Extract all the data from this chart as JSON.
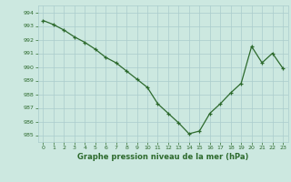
{
  "x": [
    0,
    1,
    2,
    3,
    4,
    5,
    6,
    7,
    8,
    9,
    10,
    11,
    12,
    13,
    14,
    15,
    16,
    17,
    18,
    19,
    20,
    21,
    22,
    23
  ],
  "y": [
    993.4,
    993.1,
    992.7,
    992.2,
    991.8,
    991.3,
    990.7,
    990.3,
    989.7,
    989.1,
    988.5,
    987.3,
    986.6,
    985.9,
    985.1,
    985.3,
    986.6,
    987.3,
    988.1,
    988.8,
    991.5,
    990.3,
    991.0,
    989.9
  ],
  "title": "Graphe pression niveau de la mer (hPa)",
  "ylim": [
    984.5,
    994.5
  ],
  "yticks": [
    985,
    986,
    987,
    988,
    989,
    990,
    991,
    992,
    993,
    994
  ],
  "xticks": [
    0,
    1,
    2,
    3,
    4,
    5,
    6,
    7,
    8,
    9,
    10,
    11,
    12,
    13,
    14,
    15,
    16,
    17,
    18,
    19,
    20,
    21,
    22,
    23
  ],
  "line_color": "#2d6a2d",
  "marker_color": "#2d6a2d",
  "bg_color": "#cce8e0",
  "grid_color": "#aacccc",
  "text_color": "#2d6a2d"
}
